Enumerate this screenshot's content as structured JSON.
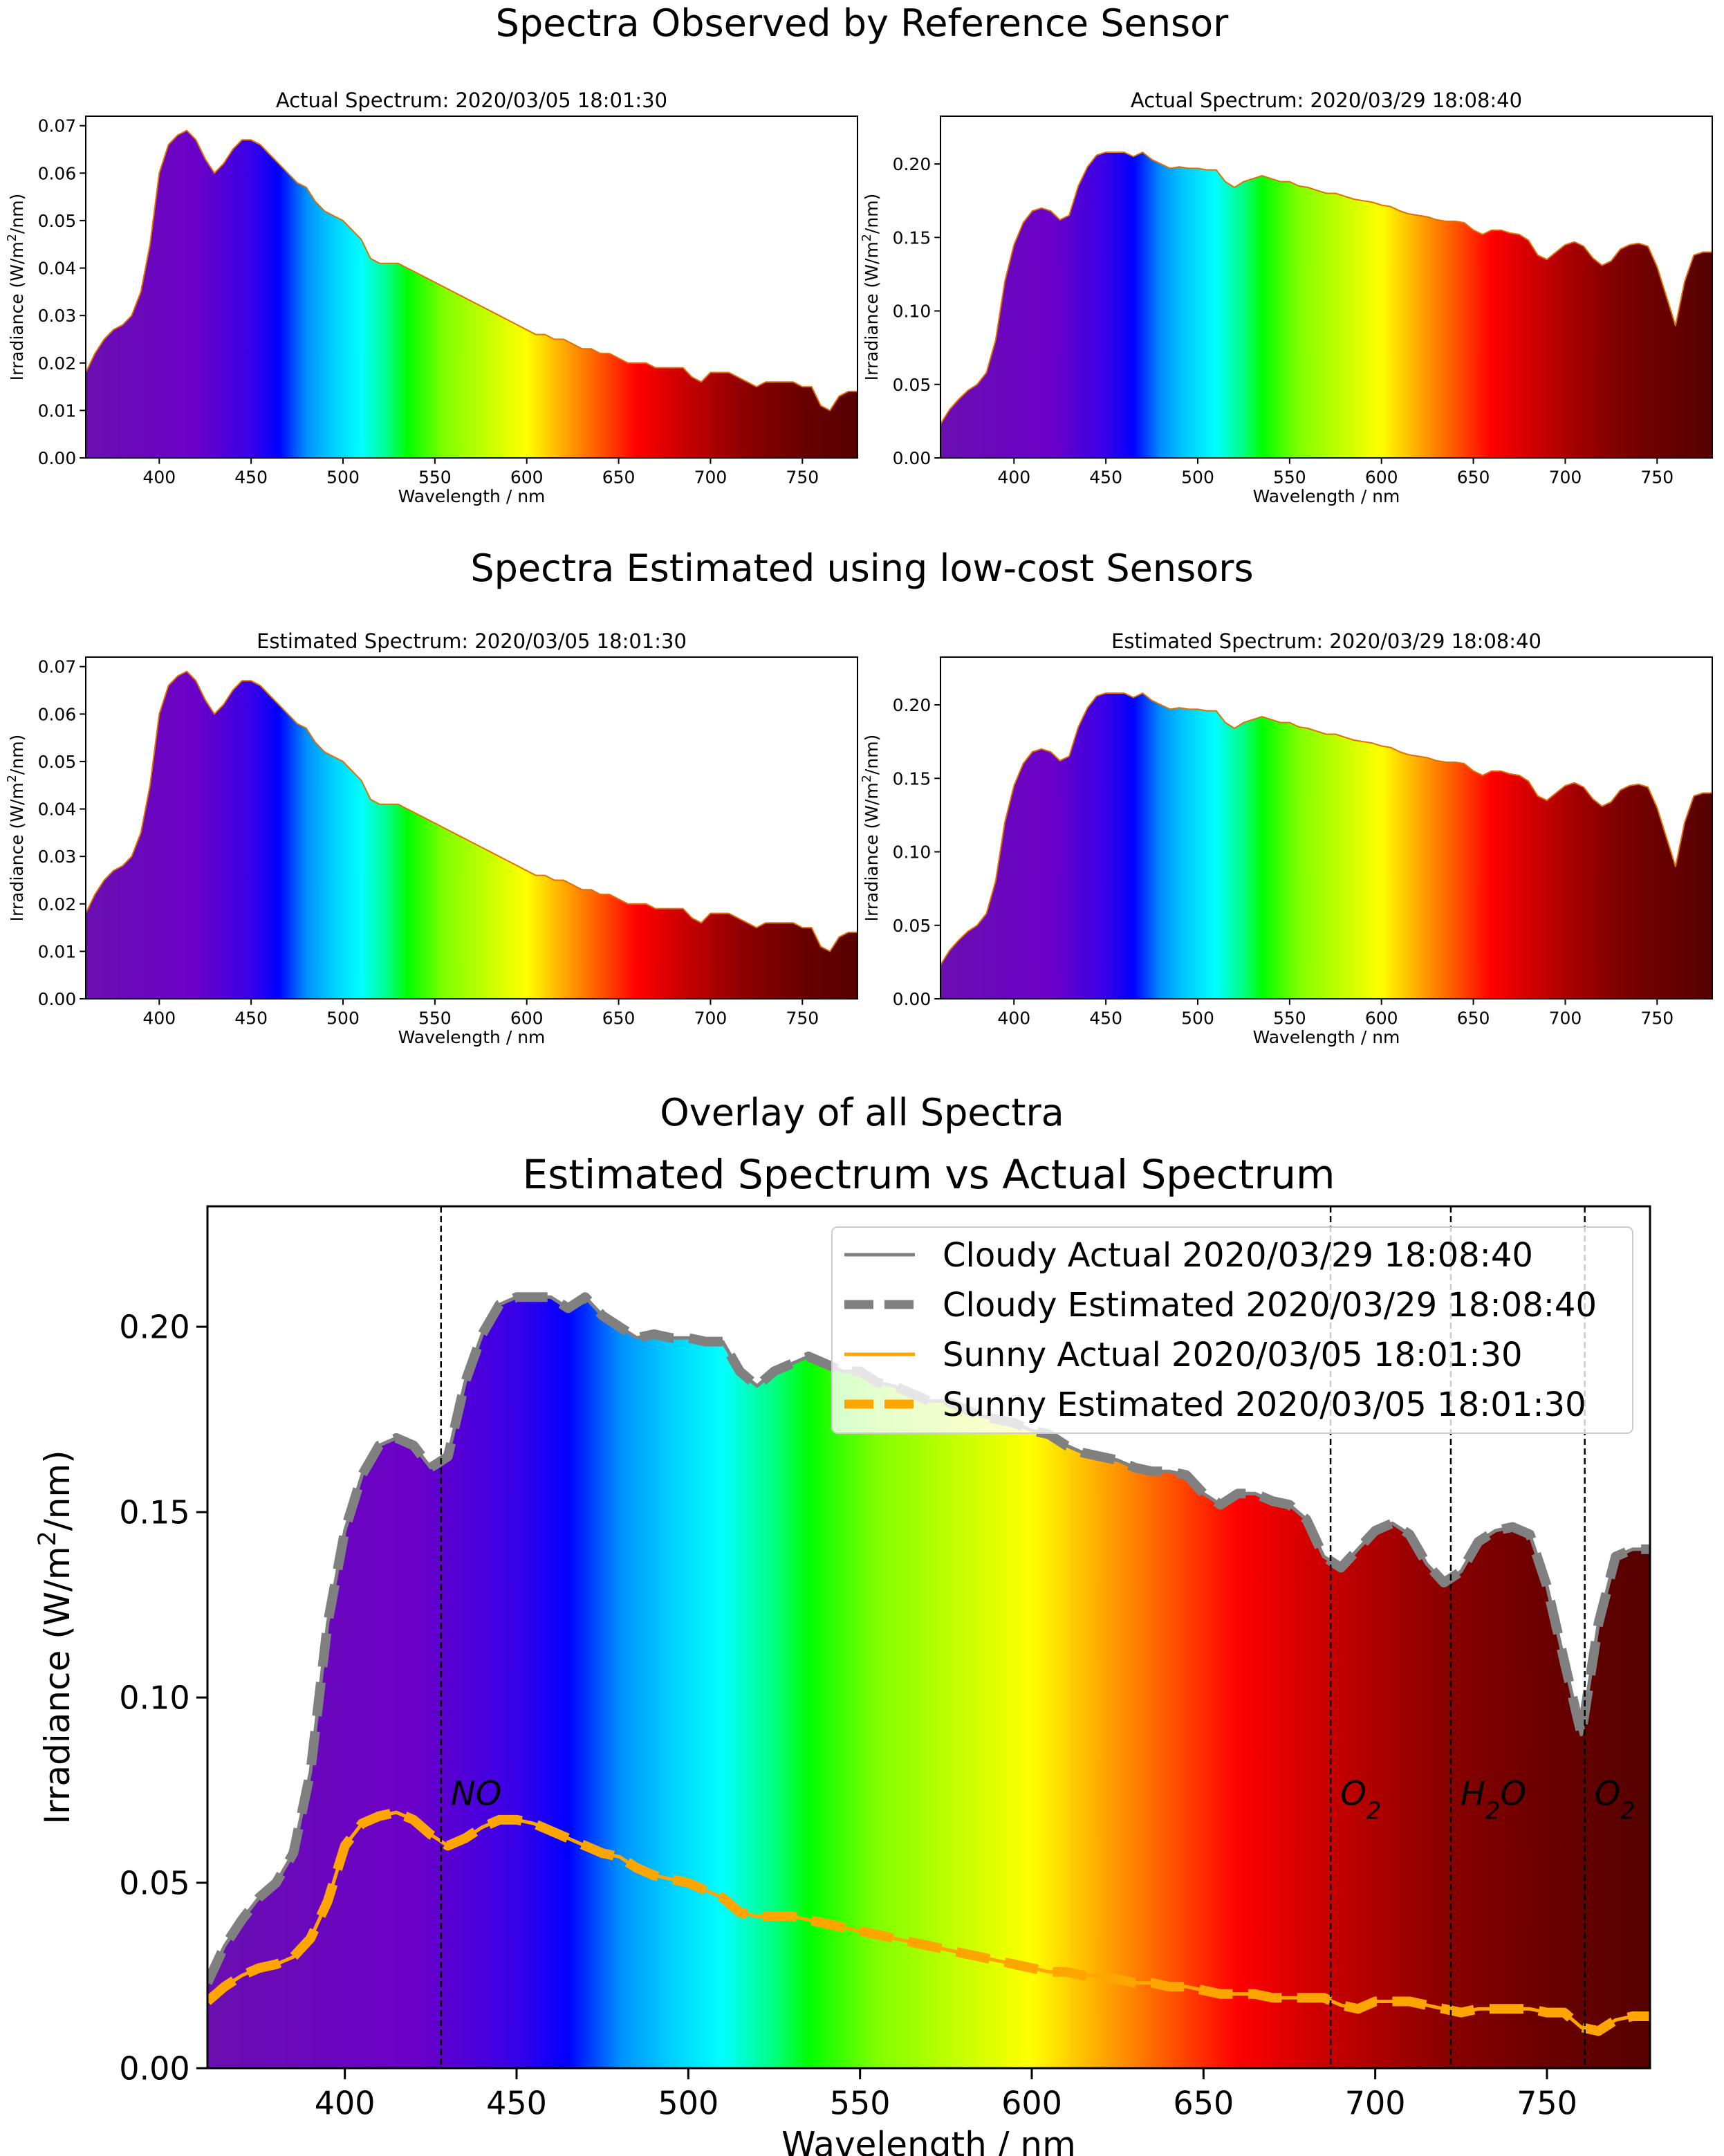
{
  "figure": {
    "section_titles": [
      "Spectra Observed by Reference Sensor",
      "Spectra Estimated using low-cost Sensors",
      "Overlay of all Spectra"
    ]
  },
  "colors": {
    "cloudy": "#808080",
    "sunny": "#ffa500",
    "annotation_line": "#000000"
  },
  "chart_data": [
    {
      "id": "actual-sunny",
      "type": "area",
      "title": "Actual Spectrum: 2020/03/05 18:01:30",
      "xlabel": "Wavelength / nm",
      "ylabel": "Irradiance (W/m²/nm)",
      "xlim": [
        360,
        780
      ],
      "ylim": [
        0,
        0.072
      ],
      "xticks": [
        400,
        450,
        500,
        550,
        600,
        650,
        700,
        750
      ],
      "yticks": [
        0.0,
        0.01,
        0.02,
        0.03,
        0.04,
        0.05,
        0.06,
        0.07
      ],
      "ytick_labels": [
        "0.00",
        "0.01",
        "0.02",
        "0.03",
        "0.04",
        "0.05",
        "0.06",
        "0.07"
      ],
      "series": "sunny"
    },
    {
      "id": "actual-cloudy",
      "type": "area",
      "title": "Actual Spectrum: 2020/03/29 18:08:40",
      "xlabel": "Wavelength / nm",
      "ylabel": "Irradiance (W/m²/nm)",
      "xlim": [
        360,
        780
      ],
      "ylim": [
        0,
        0.2325
      ],
      "xticks": [
        400,
        450,
        500,
        550,
        600,
        650,
        700,
        750
      ],
      "yticks": [
        0.0,
        0.05,
        0.1,
        0.15,
        0.2
      ],
      "ytick_labels": [
        "0.00",
        "0.05",
        "0.10",
        "0.15",
        "0.20"
      ],
      "series": "cloudy"
    },
    {
      "id": "estimated-sunny",
      "type": "area",
      "title": "Estimated Spectrum: 2020/03/05 18:01:30",
      "xlabel": "Wavelength / nm",
      "ylabel": "Irradiance (W/m²/nm)",
      "xlim": [
        360,
        780
      ],
      "ylim": [
        0,
        0.072
      ],
      "xticks": [
        400,
        450,
        500,
        550,
        600,
        650,
        700,
        750
      ],
      "yticks": [
        0.0,
        0.01,
        0.02,
        0.03,
        0.04,
        0.05,
        0.06,
        0.07
      ],
      "ytick_labels": [
        "0.00",
        "0.01",
        "0.02",
        "0.03",
        "0.04",
        "0.05",
        "0.06",
        "0.07"
      ],
      "series": "sunny"
    },
    {
      "id": "estimated-cloudy",
      "type": "area",
      "title": "Estimated Spectrum: 2020/03/29 18:08:40",
      "xlabel": "Wavelength / nm",
      "ylabel": "Irradiance (W/m²/nm)",
      "xlim": [
        360,
        780
      ],
      "ylim": [
        0,
        0.2325
      ],
      "xticks": [
        400,
        450,
        500,
        550,
        600,
        650,
        700,
        750
      ],
      "yticks": [
        0.0,
        0.05,
        0.1,
        0.15,
        0.2
      ],
      "ytick_labels": [
        "0.00",
        "0.05",
        "0.10",
        "0.15",
        "0.20"
      ],
      "series": "cloudy"
    },
    {
      "id": "overlay",
      "type": "line",
      "title": "Estimated Spectrum vs Actual Spectrum",
      "xlabel": "Wavelength / nm",
      "ylabel": "Irradiance (W/m²/nm)",
      "xlim": [
        360,
        780
      ],
      "ylim": [
        0,
        0.2325
      ],
      "xticks": [
        400,
        450,
        500,
        550,
        600,
        650,
        700,
        750
      ],
      "yticks": [
        0.0,
        0.05,
        0.1,
        0.15,
        0.2
      ],
      "ytick_labels": [
        "0.00",
        "0.05",
        "0.10",
        "0.15",
        "0.20"
      ],
      "legend_position": "top-right",
      "legend": [
        {
          "label": "Cloudy Actual 2020/03/29 18:08:40",
          "series": "cloudy",
          "style": "solid"
        },
        {
          "label": "Cloudy Estimated 2020/03/29 18:08:40",
          "series": "cloudy",
          "style": "dashed"
        },
        {
          "label": "Sunny Actual 2020/03/05 18:01:30",
          "series": "sunny",
          "style": "solid"
        },
        {
          "label": "Sunny Estimated 2020/03/05 18:01:30",
          "series": "sunny",
          "style": "dashed"
        }
      ],
      "vlines": [
        {
          "x": 428,
          "label": "NO",
          "label_side": "right"
        },
        {
          "x": 687,
          "label": "O2",
          "label_side": "right"
        },
        {
          "x": 722,
          "label": "H2O",
          "label_side": "right"
        },
        {
          "x": 761,
          "label": "O2",
          "label_side": "right"
        }
      ]
    }
  ],
  "spectra": {
    "sunny": {
      "x": [
        360,
        365,
        370,
        375,
        380,
        385,
        390,
        395,
        400,
        405,
        410,
        415,
        420,
        425,
        430,
        435,
        440,
        445,
        450,
        455,
        460,
        465,
        470,
        475,
        480,
        485,
        490,
        495,
        500,
        505,
        510,
        515,
        520,
        525,
        530,
        535,
        540,
        545,
        550,
        555,
        560,
        565,
        570,
        575,
        580,
        585,
        590,
        595,
        600,
        605,
        610,
        615,
        620,
        625,
        630,
        635,
        640,
        645,
        650,
        655,
        660,
        665,
        670,
        675,
        680,
        685,
        690,
        695,
        700,
        705,
        710,
        715,
        720,
        725,
        730,
        735,
        740,
        745,
        750,
        755,
        760,
        765,
        770,
        775,
        780
      ],
      "y": [
        0.018,
        0.022,
        0.025,
        0.027,
        0.028,
        0.03,
        0.035,
        0.045,
        0.06,
        0.066,
        0.068,
        0.069,
        0.067,
        0.063,
        0.06,
        0.062,
        0.065,
        0.067,
        0.067,
        0.066,
        0.064,
        0.062,
        0.06,
        0.058,
        0.057,
        0.054,
        0.052,
        0.051,
        0.05,
        0.048,
        0.046,
        0.042,
        0.041,
        0.041,
        0.041,
        0.04,
        0.039,
        0.038,
        0.037,
        0.036,
        0.035,
        0.034,
        0.033,
        0.032,
        0.031,
        0.03,
        0.029,
        0.028,
        0.027,
        0.026,
        0.026,
        0.025,
        0.025,
        0.024,
        0.023,
        0.023,
        0.022,
        0.022,
        0.021,
        0.02,
        0.02,
        0.02,
        0.019,
        0.019,
        0.019,
        0.019,
        0.017,
        0.016,
        0.018,
        0.018,
        0.018,
        0.017,
        0.016,
        0.015,
        0.016,
        0.016,
        0.016,
        0.016,
        0.015,
        0.015,
        0.011,
        0.01,
        0.013,
        0.014,
        0.014
      ]
    },
    "cloudy": {
      "x": [
        360,
        365,
        370,
        375,
        380,
        385,
        390,
        395,
        400,
        405,
        410,
        415,
        420,
        425,
        430,
        435,
        440,
        445,
        450,
        455,
        460,
        465,
        470,
        475,
        480,
        485,
        490,
        495,
        500,
        505,
        510,
        515,
        520,
        525,
        530,
        535,
        540,
        545,
        550,
        555,
        560,
        565,
        570,
        575,
        580,
        585,
        590,
        595,
        600,
        605,
        610,
        615,
        620,
        625,
        630,
        635,
        640,
        645,
        650,
        655,
        660,
        665,
        670,
        675,
        680,
        685,
        690,
        695,
        700,
        705,
        710,
        715,
        720,
        725,
        730,
        735,
        740,
        745,
        750,
        755,
        760,
        765,
        770,
        775,
        780
      ],
      "y": [
        0.023,
        0.033,
        0.04,
        0.046,
        0.05,
        0.058,
        0.08,
        0.12,
        0.145,
        0.16,
        0.168,
        0.17,
        0.168,
        0.162,
        0.165,
        0.185,
        0.198,
        0.206,
        0.208,
        0.208,
        0.208,
        0.205,
        0.208,
        0.203,
        0.2,
        0.197,
        0.198,
        0.197,
        0.197,
        0.196,
        0.196,
        0.188,
        0.184,
        0.188,
        0.19,
        0.192,
        0.19,
        0.188,
        0.188,
        0.185,
        0.184,
        0.182,
        0.18,
        0.18,
        0.178,
        0.176,
        0.175,
        0.174,
        0.172,
        0.171,
        0.168,
        0.166,
        0.165,
        0.164,
        0.162,
        0.161,
        0.161,
        0.16,
        0.155,
        0.152,
        0.155,
        0.155,
        0.153,
        0.152,
        0.148,
        0.138,
        0.135,
        0.14,
        0.145,
        0.147,
        0.144,
        0.136,
        0.131,
        0.134,
        0.142,
        0.145,
        0.146,
        0.144,
        0.13,
        0.11,
        0.09,
        0.12,
        0.138,
        0.14,
        0.14
      ]
    }
  }
}
